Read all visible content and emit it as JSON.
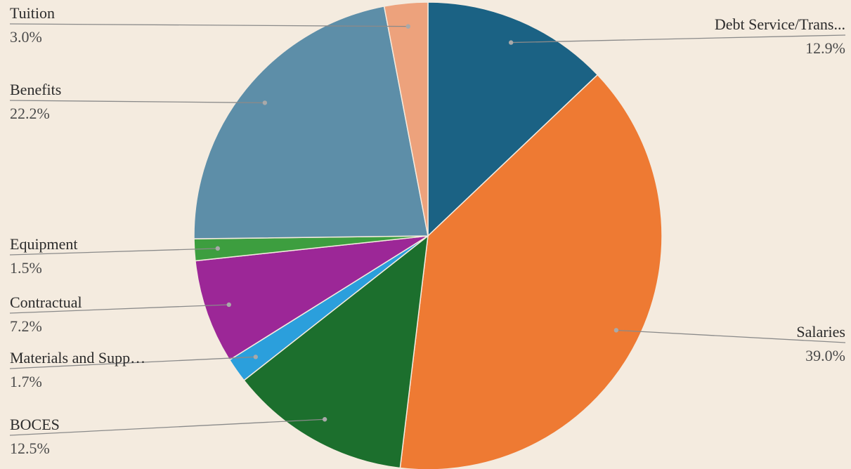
{
  "chart_data": {
    "type": "pie",
    "title": "",
    "slices": [
      {
        "label": "Debt Service/Trans...",
        "value": 12.9,
        "pct_text": "12.9%",
        "color": "#1b6284",
        "side": "right"
      },
      {
        "label": "Salaries",
        "value": 39.0,
        "pct_text": "39.0%",
        "color": "#ee7a33",
        "side": "right"
      },
      {
        "label": "BOCES",
        "value": 12.5,
        "pct_text": "12.5%",
        "color": "#1c6f2d",
        "side": "left"
      },
      {
        "label": "Materials and Supp…",
        "value": 1.7,
        "pct_text": "1.7%",
        "color": "#2b9fdc",
        "side": "left"
      },
      {
        "label": "Contractual",
        "value": 7.2,
        "pct_text": "7.2%",
        "color": "#9c2797",
        "side": "left"
      },
      {
        "label": "Equipment",
        "value": 1.5,
        "pct_text": "1.5%",
        "color": "#3d9e3f",
        "side": "left"
      },
      {
        "label": "Benefits",
        "value": 22.2,
        "pct_text": "22.2%",
        "color": "#5d8ea8",
        "side": "left"
      },
      {
        "label": "Tuition",
        "value": 3.0,
        "pct_text": "3.0%",
        "color": "#eda27c",
        "side": "left"
      }
    ],
    "start_angle": "12 o'clock",
    "direction": "clockwise",
    "legend": "none",
    "label_style": "outside with leader lines"
  }
}
